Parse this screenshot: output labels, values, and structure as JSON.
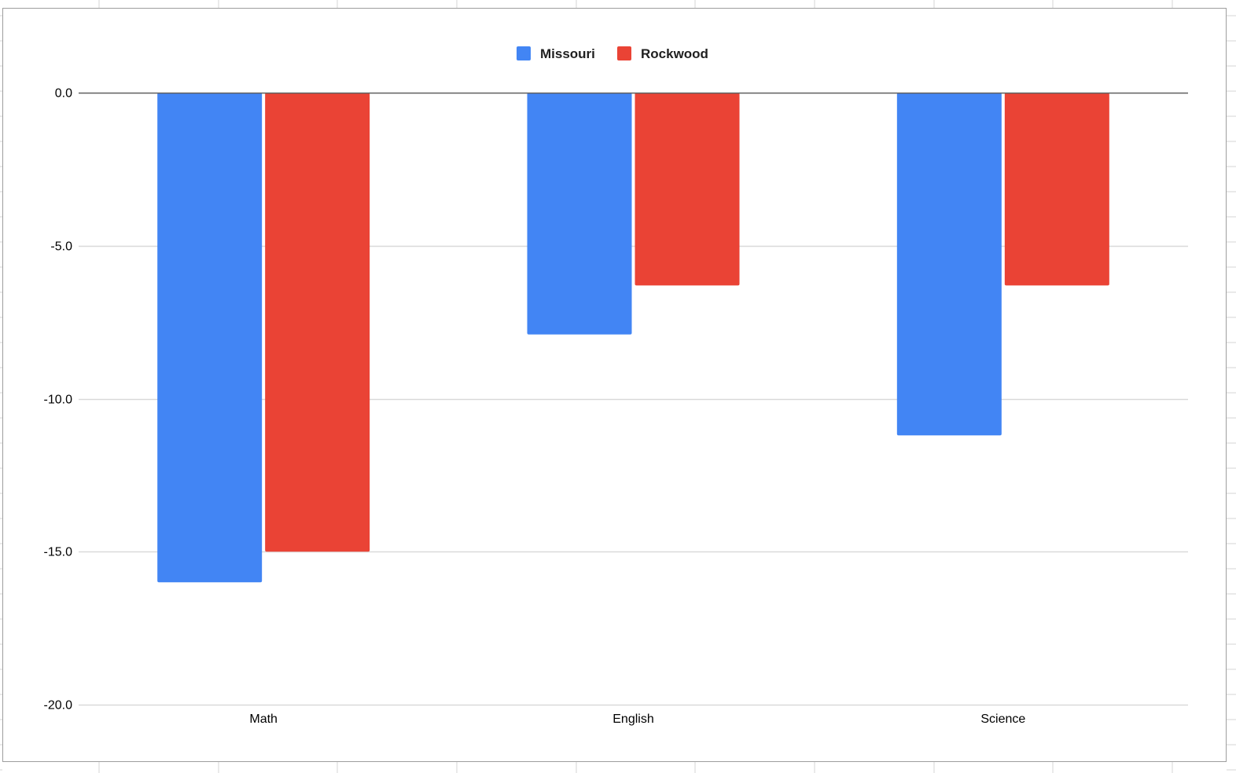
{
  "chart_data": {
    "type": "bar",
    "title": "",
    "xlabel": "",
    "ylabel": "",
    "categories": [
      "Math",
      "English",
      "Science"
    ],
    "series": [
      {
        "name": "Missouri",
        "color": "#4285f4",
        "values": [
          -16.0,
          -7.9,
          -11.2
        ]
      },
      {
        "name": "Rockwood",
        "color": "#ea4335",
        "values": [
          -15.0,
          -6.3,
          -6.3
        ]
      }
    ],
    "ylim": [
      -20.0,
      0.0
    ],
    "yticks": [
      "0.0",
      "-5.0",
      "-10.0",
      "-15.0",
      "-20.0"
    ],
    "ytick_values": [
      0,
      -5,
      -10,
      -15,
      -20
    ],
    "grid": true,
    "legend_position": "top-center",
    "gridline_color": "#d9d9d9",
    "baseline_color": "#5f5f5f"
  }
}
